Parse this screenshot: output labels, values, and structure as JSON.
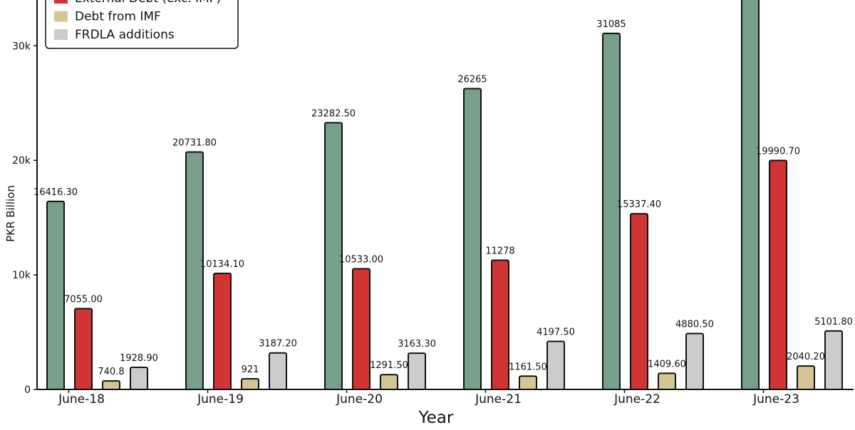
{
  "chart_data": {
    "type": "bar",
    "title": "",
    "xlabel": "Year",
    "ylabel": "PKR Billion",
    "categories": [
      "June-18",
      "June-19",
      "June-20",
      "June-21",
      "June-22",
      "June-23"
    ],
    "ylim": [
      0,
      34000
    ],
    "yticks": [
      0,
      10000,
      20000,
      30000
    ],
    "ytick_labels": [
      "0",
      "10k",
      "20k",
      "30k"
    ],
    "grid": false,
    "legend_position": "top-left",
    "series": [
      {
        "name": "",
        "color": "#76a08a",
        "values": [
          16416.3,
          20731.8,
          23282.5,
          26265,
          31085,
          35000
        ],
        "labels": [
          "16416.30",
          "20731.80",
          "23282.50",
          "26265",
          "31085",
          ""
        ]
      },
      {
        "name": "External Debt (exc. IMF)",
        "color": "#d13434",
        "values": [
          7055.0,
          10134.1,
          10533.0,
          11278,
          15337.4,
          19990.7
        ],
        "labels": [
          "7055.00",
          "10134.10",
          "10533.00",
          "11278",
          "15337.40",
          "19990.70"
        ]
      },
      {
        "name": "Debt from IMF",
        "color": "#d5c594",
        "values": [
          740.8,
          921,
          1291.5,
          1161.5,
          1409.6,
          2040.2
        ],
        "labels": [
          "740.8",
          "921",
          "1291.50",
          "1161.50",
          "1409.60",
          "2040.20"
        ]
      },
      {
        "name": "FRDLA additions",
        "color": "#cccccc",
        "values": [
          1928.9,
          3187.2,
          3163.3,
          4197.5,
          4880.5,
          5101.8
        ],
        "labels": [
          "1928.90",
          "3187.20",
          "3163.30",
          "4197.50",
          "4880.50",
          "5101.80"
        ]
      }
    ]
  }
}
